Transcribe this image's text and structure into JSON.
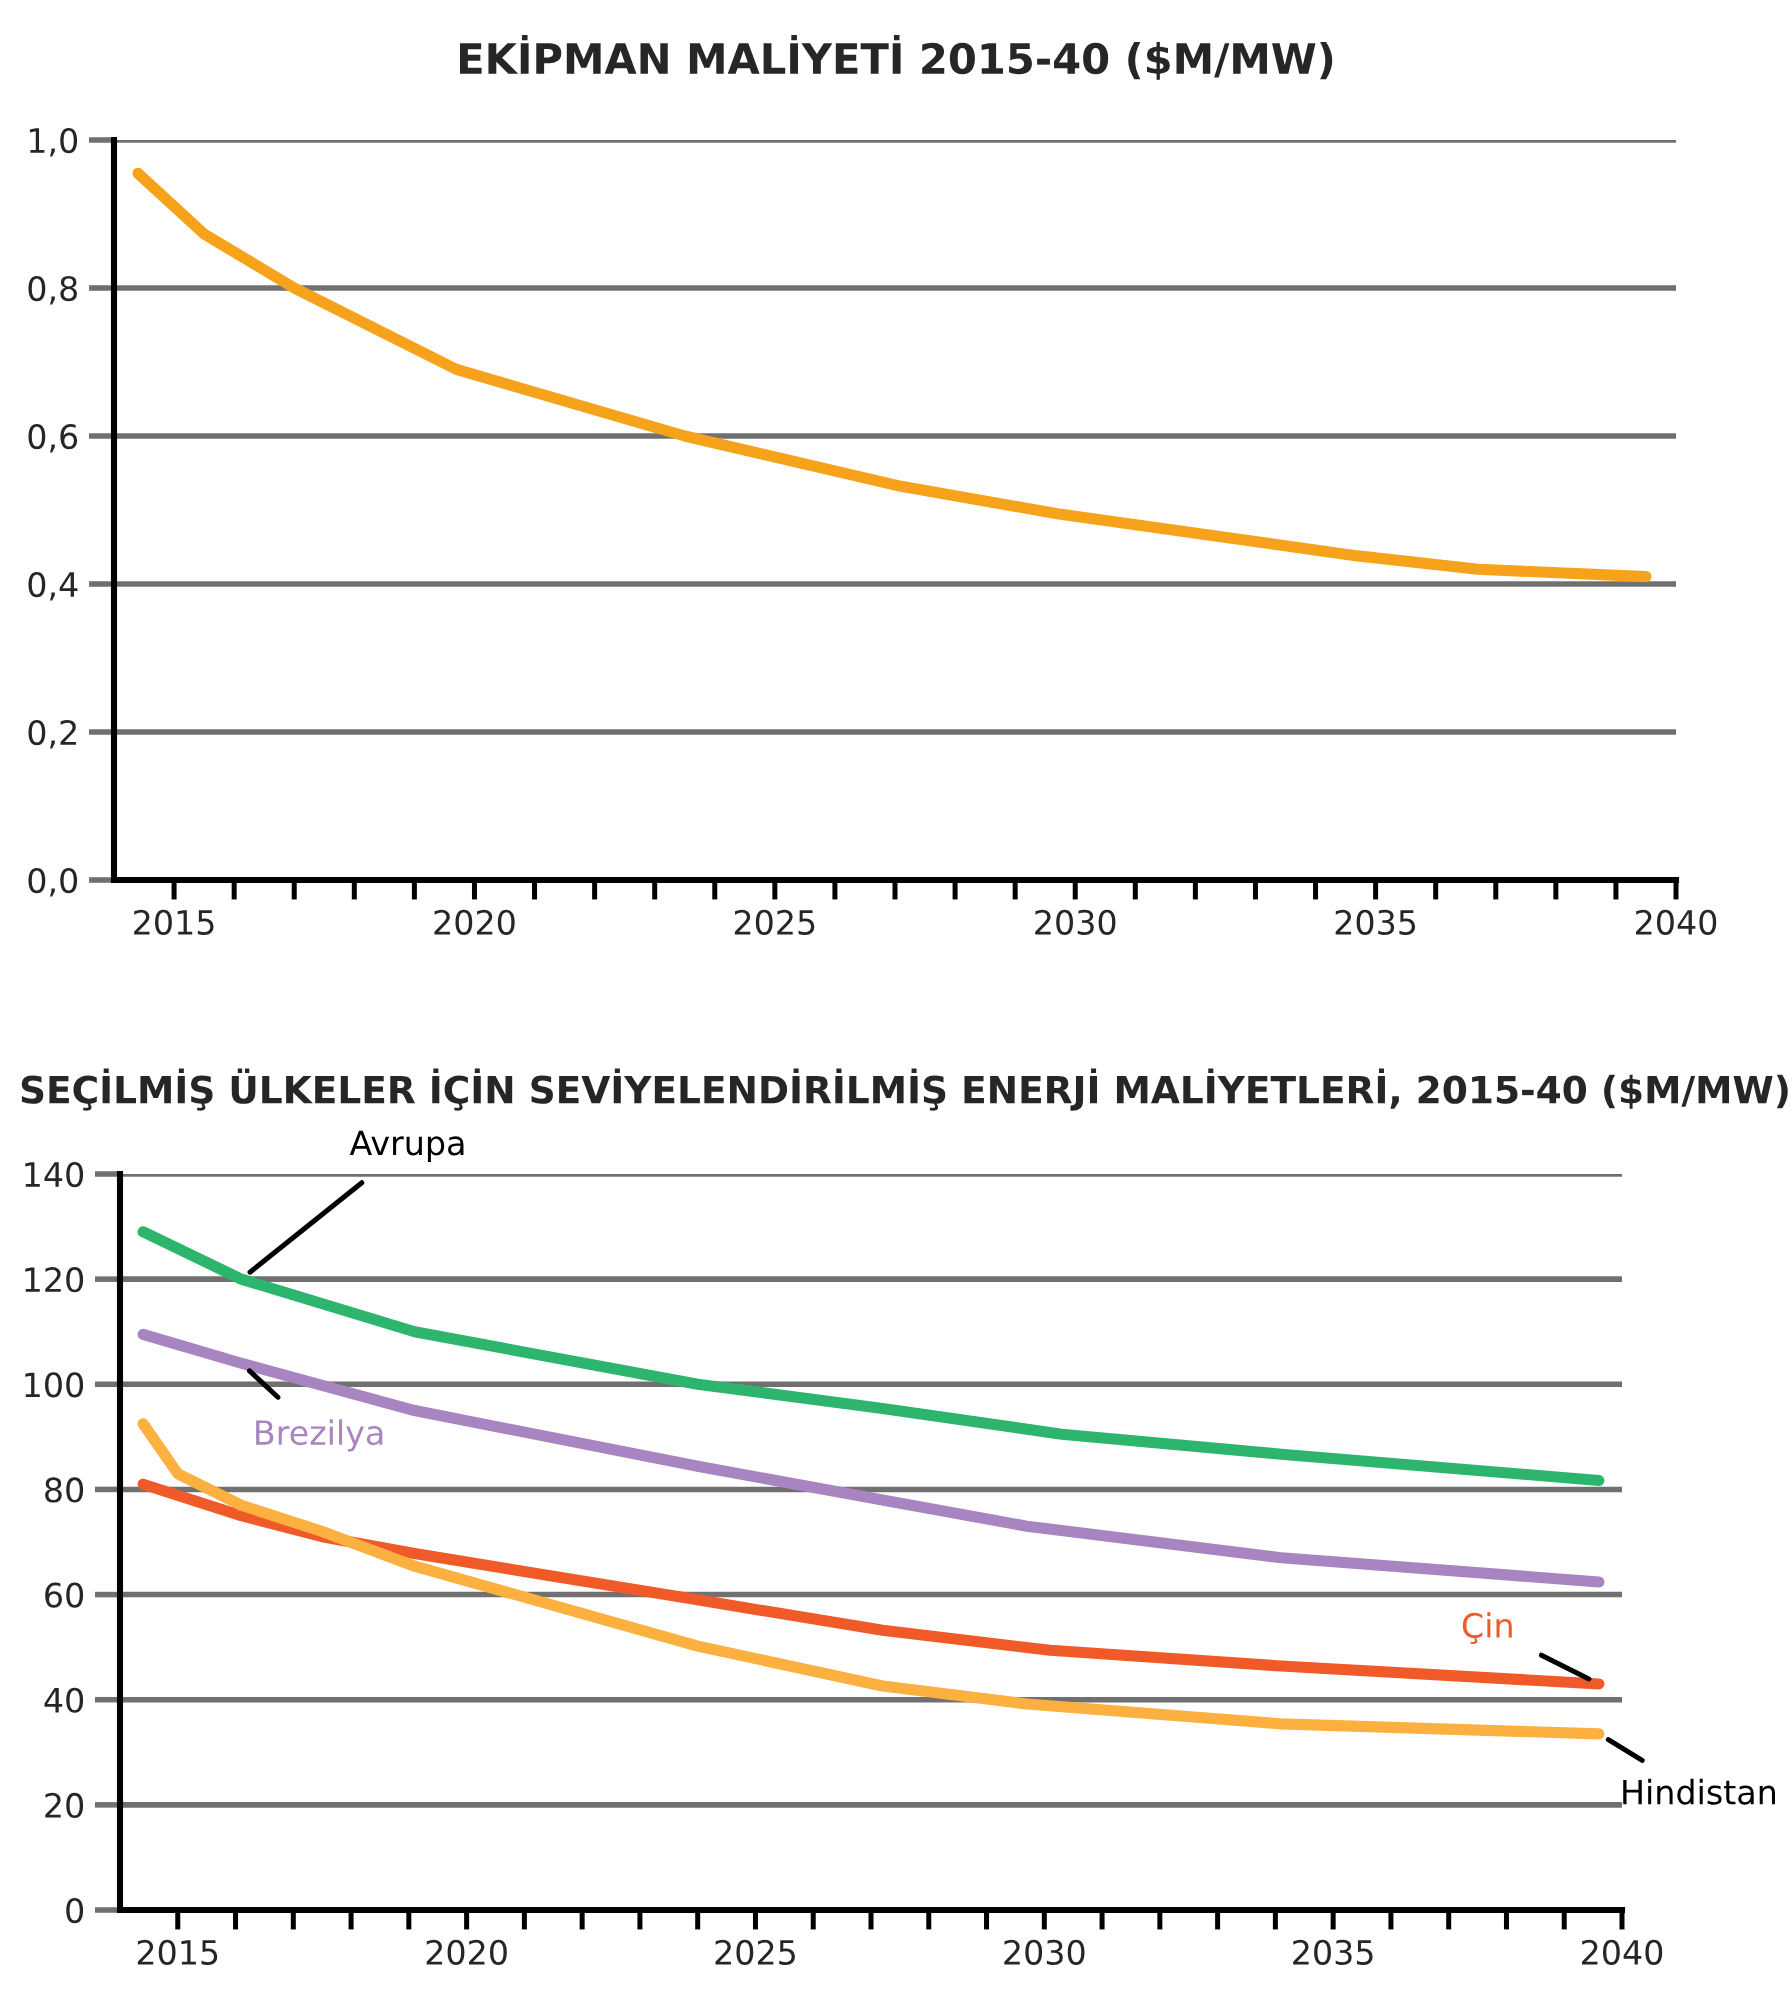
{
  "chart_data": [
    {
      "type": "line",
      "title": "EKİPMAN MALİYETİ 2015-40 ($M/MW)",
      "series": [
        {
          "color": "#f7a21b",
          "x": [
            2014.4,
            2015.5,
            2017.0,
            2019.7,
            2023.5,
            2027.1,
            2029.7,
            2034.7,
            2036.7,
            2039.5
          ],
          "values": [
            0.955,
            0.873,
            0.8,
            0.69,
            0.6,
            0.532,
            0.495,
            0.438,
            0.42,
            0.41
          ]
        }
      ],
      "xlim": [
        2014,
        2040
      ],
      "ylim": [
        0,
        1.0
      ],
      "xticks": [
        2015,
        {
          "value": 2016,
          "label": null
        },
        {
          "value": 2017,
          "label": null
        },
        {
          "value": 2018,
          "label": null
        },
        {
          "value": 2019,
          "label": null
        },
        2020,
        {
          "value": 2021,
          "label": null
        },
        {
          "value": 2022,
          "label": null
        },
        {
          "value": 2023,
          "label": null
        },
        {
          "value": 2024,
          "label": null
        },
        2025,
        {
          "value": 2026,
          "label": null
        },
        {
          "value": 2027,
          "label": null
        },
        {
          "value": 2028,
          "label": null
        },
        {
          "value": 2029,
          "label": null
        },
        2030,
        {
          "value": 2031,
          "label": null
        },
        {
          "value": 2032,
          "label": null
        },
        {
          "value": 2033,
          "label": null
        },
        {
          "value": 2034,
          "label": null
        },
        2035,
        {
          "value": 2036,
          "label": null
        },
        {
          "value": 2037,
          "label": null
        },
        {
          "value": 2038,
          "label": null
        },
        {
          "value": 2039,
          "label": null
        },
        2040
      ],
      "yticks": [
        {
          "value": 0,
          "label": "0,0"
        },
        {
          "value": 0.2,
          "label": "0,2"
        },
        {
          "value": 0.4,
          "label": "0,4"
        },
        {
          "value": 0.6,
          "label": "0,6"
        },
        {
          "value": 0.8,
          "label": "0,8"
        },
        {
          "value": 1.0,
          "label": "1,0"
        }
      ],
      "grid": "y",
      "legend": false,
      "line_style": "solid",
      "marker": "none"
    },
    {
      "type": "line",
      "title": "SEÇİLMİŞ ÜLKELER İÇİN SEVİYELENDİRİLMİŞ ENERJİ MALİYETLERİ, 2015-40 ($M/MW)",
      "series": [
        {
          "name": "Avrupa",
          "color": "#2db56e",
          "x": [
            2014.4,
            2016.1,
            2019.1,
            2024.0,
            2027.2,
            2030.3,
            2034.1,
            2039.6
          ],
          "values": [
            129,
            120,
            110,
            100,
            95.4,
            90.5,
            86.7,
            81.7
          ]
        },
        {
          "name": "Brezilya",
          "color": "#a884c0",
          "x": [
            2014.4,
            2016.1,
            2019.1,
            2024.0,
            2027.2,
            2029.7,
            2034.1,
            2039.6
          ],
          "values": [
            109.5,
            104,
            95,
            84.4,
            78,
            73,
            67,
            62.4
          ]
        },
        {
          "name": "Çin",
          "color": "#f05a28",
          "x": [
            2014.4,
            2016.1,
            2017.5,
            2019.1,
            2024.0,
            2027.2,
            2030.1,
            2034.1,
            2039.6
          ],
          "values": [
            81,
            75,
            71,
            67.8,
            59,
            53.2,
            49.4,
            46.4,
            43
          ]
        },
        {
          "name": "Hindistan",
          "color": "#fbb040",
          "x": [
            2014.4,
            2015.0,
            2016.1,
            2017.5,
            2019.1,
            2024.0,
            2027.2,
            2029.7,
            2034.1,
            2039.6
          ],
          "values": [
            92.5,
            83,
            77,
            72,
            65.4,
            50.2,
            42.6,
            39.2,
            35.4,
            33.5
          ]
        }
      ],
      "xlim": [
        2014,
        2040
      ],
      "ylim": [
        0,
        140
      ],
      "xticks": [
        2015,
        {
          "value": 2016,
          "label": null
        },
        {
          "value": 2017,
          "label": null
        },
        {
          "value": 2018,
          "label": null
        },
        {
          "value": 2019,
          "label": null
        },
        2020,
        {
          "value": 2021,
          "label": null
        },
        {
          "value": 2022,
          "label": null
        },
        {
          "value": 2023,
          "label": null
        },
        {
          "value": 2024,
          "label": null
        },
        2025,
        {
          "value": 2026,
          "label": null
        },
        {
          "value": 2027,
          "label": null
        },
        {
          "value": 2028,
          "label": null
        },
        {
          "value": 2029,
          "label": null
        },
        2030,
        {
          "value": 2031,
          "label": null
        },
        {
          "value": 2032,
          "label": null
        },
        {
          "value": 2033,
          "label": null
        },
        {
          "value": 2034,
          "label": null
        },
        2035,
        {
          "value": 2036,
          "label": null
        },
        {
          "value": 2037,
          "label": null
        },
        {
          "value": 2038,
          "label": null
        },
        {
          "value": 2039,
          "label": null
        },
        2040
      ],
      "yticks": [
        0,
        20,
        40,
        60,
        80,
        100,
        120,
        140
      ],
      "grid": "y",
      "legend": false,
      "line_style": "solid",
      "marker": "none"
    }
  ]
}
